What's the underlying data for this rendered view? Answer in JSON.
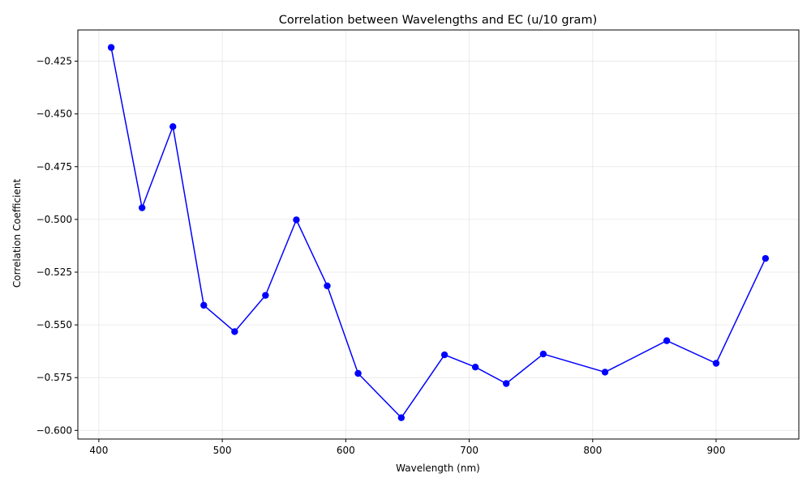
{
  "chart_data": {
    "type": "line",
    "title": "Correlation between Wavelengths and EC (u/10 gram)",
    "xlabel": "Wavelength (nm)",
    "ylabel": "Correlation Coefficient",
    "x": [
      410,
      435,
      460,
      485,
      510,
      535,
      560,
      585,
      610,
      645,
      680,
      705,
      730,
      760,
      810,
      860,
      900,
      940
    ],
    "y": [
      -0.4185,
      -0.4945,
      -0.456,
      -0.5407,
      -0.5532,
      -0.536,
      -0.5002,
      -0.5315,
      -0.573,
      -0.594,
      -0.5642,
      -0.57,
      -0.5778,
      -0.5638,
      -0.5724,
      -0.5575,
      -0.5682,
      -0.5185
    ],
    "xlim": [
      383,
      967
    ],
    "ylim": [
      -0.6041,
      -0.4102
    ],
    "xticks": [
      400,
      500,
      600,
      700,
      800,
      900
    ],
    "xtick_labels": [
      "400",
      "500",
      "600",
      "700",
      "800",
      "900"
    ],
    "yticks": [
      -0.425,
      -0.45,
      -0.475,
      -0.5,
      -0.525,
      -0.55,
      -0.575,
      -0.6
    ],
    "ytick_labels": [
      "−0.425",
      "−0.450",
      "−0.475",
      "−0.500",
      "−0.525",
      "−0.550",
      "−0.575",
      "−0.600"
    ],
    "grid": true,
    "line_color": "#0000ff",
    "marker_color": "#0000ff",
    "marker": "circle"
  }
}
